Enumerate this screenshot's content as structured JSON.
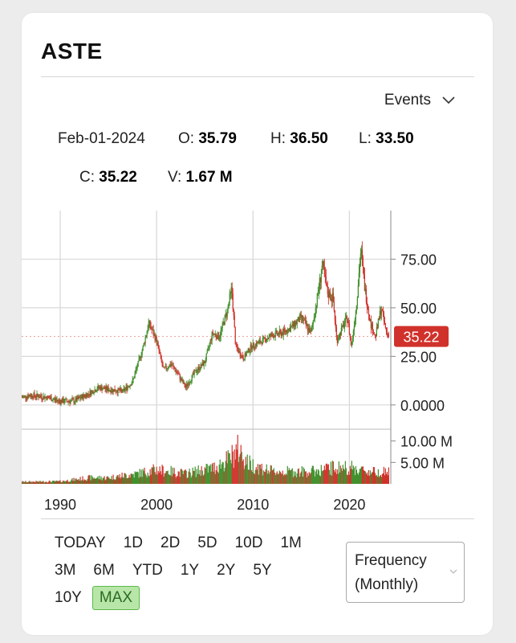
{
  "ticker": "ASTE",
  "events_label": "Events",
  "quote": {
    "date": "Feb-01-2024",
    "open_label": "O:",
    "open": "35.79",
    "high_label": "H:",
    "high": "36.50",
    "low_label": "L:",
    "low": "33.50",
    "close_label": "C:",
    "close": "35.22",
    "volume_label": "V:",
    "volume": "1.67 M"
  },
  "current_price_badge": "35.22",
  "ranges": [
    "TODAY",
    "1D",
    "2D",
    "5D",
    "10D",
    "1M",
    "3M",
    "6M",
    "YTD",
    "1Y",
    "2Y",
    "5Y",
    "10Y",
    "MAX"
  ],
  "active_range": "MAX",
  "frequency": {
    "line1": "Frequency",
    "line2": "(Monthly)"
  },
  "colors": {
    "up": "#3f8f2a",
    "down": "#d0322b",
    "badge": "#d0322b",
    "grid": "#d9d9d9"
  },
  "chart_data": {
    "type": "candlestick",
    "price_axis": {
      "ticks": [
        "75.00",
        "50.00",
        "25.00",
        "0.0000"
      ],
      "tick_values": [
        75,
        50,
        25,
        0
      ],
      "ylim": [
        -10,
        100
      ]
    },
    "volume_axis": {
      "ticks": [
        "10.00 M",
        "5.00 M"
      ],
      "tick_values": [
        10,
        5
      ],
      "ylim": [
        0,
        12
      ]
    },
    "x_axis": {
      "ticks": [
        "1990",
        "2000",
        "2010",
        "2020"
      ],
      "tick_values": [
        1990,
        2000,
        2010,
        2020
      ],
      "xlim": [
        1986.0,
        2024.3
      ]
    },
    "series_keypoints": [
      [
        1986.0,
        4
      ],
      [
        1987.0,
        5
      ],
      [
        1988.5,
        4
      ],
      [
        1990.0,
        2
      ],
      [
        1991.5,
        2
      ],
      [
        1993.0,
        6
      ],
      [
        1994.0,
        9
      ],
      [
        1995.0,
        8
      ],
      [
        1996.5,
        7
      ],
      [
        1997.5,
        12
      ],
      [
        1998.5,
        28
      ],
      [
        1999.2,
        42
      ],
      [
        2000.0,
        33
      ],
      [
        2000.7,
        18
      ],
      [
        2001.5,
        21
      ],
      [
        2002.2,
        16
      ],
      [
        2003.0,
        9
      ],
      [
        2004.0,
        17
      ],
      [
        2005.0,
        22
      ],
      [
        2005.8,
        37
      ],
      [
        2006.5,
        35
      ],
      [
        2007.3,
        48
      ],
      [
        2007.8,
        60
      ],
      [
        2008.2,
        30
      ],
      [
        2009.0,
        24
      ],
      [
        2009.8,
        30
      ],
      [
        2011.0,
        33
      ],
      [
        2012.0,
        36
      ],
      [
        2013.0,
        37
      ],
      [
        2014.0,
        40
      ],
      [
        2015.0,
        45
      ],
      [
        2016.0,
        37
      ],
      [
        2016.5,
        50
      ],
      [
        2017.2,
        72
      ],
      [
        2017.7,
        58
      ],
      [
        2018.3,
        55
      ],
      [
        2018.7,
        33
      ],
      [
        2019.3,
        40
      ],
      [
        2019.8,
        45
      ],
      [
        2020.2,
        30
      ],
      [
        2020.7,
        50
      ],
      [
        2021.2,
        80
      ],
      [
        2021.6,
        60
      ],
      [
        2022.2,
        42
      ],
      [
        2022.7,
        35
      ],
      [
        2023.3,
        50
      ],
      [
        2023.8,
        38
      ],
      [
        2024.1,
        35.22
      ]
    ],
    "volume_keypoints": [
      [
        1986.0,
        0.5
      ],
      [
        1990.0,
        0.6
      ],
      [
        1993.0,
        1.5
      ],
      [
        1995.0,
        1.5
      ],
      [
        1998.0,
        2.5
      ],
      [
        2000.0,
        3.5
      ],
      [
        2003.0,
        2.5
      ],
      [
        2006.0,
        4.0
      ],
      [
        2007.5,
        6.0
      ],
      [
        2008.5,
        8.5
      ],
      [
        2009.5,
        5.0
      ],
      [
        2012.0,
        3.0
      ],
      [
        2016.0,
        3.0
      ],
      [
        2018.5,
        4.0
      ],
      [
        2020.0,
        4.0
      ],
      [
        2022.0,
        3.0
      ],
      [
        2024.1,
        3.0
      ]
    ]
  }
}
